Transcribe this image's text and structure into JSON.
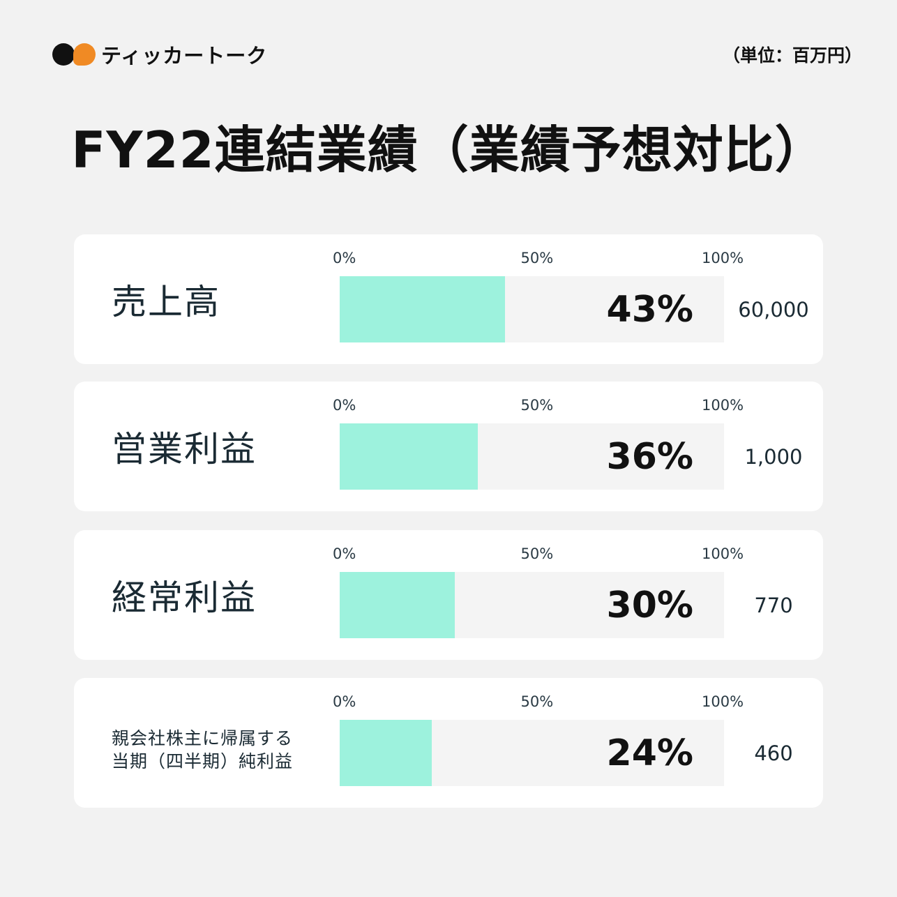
{
  "header": {
    "brand_name": "ティッカートーク",
    "unit": "（単位：百万円）",
    "title": "FY22連結業績（業績予想対比）"
  },
  "colors": {
    "fill": "#9df2dd",
    "track": "#f4f4f4",
    "logo_black": "#111111",
    "logo_orange": "#f08a24"
  },
  "icons": [
    "brand-logo-icon"
  ],
  "chart_data": {
    "type": "bar",
    "orientation": "horizontal",
    "xlim": [
      0,
      100
    ],
    "ticks": [
      "0%",
      "50%",
      "100%"
    ],
    "categories": [
      "売上高",
      "営業利益",
      "経常利益",
      "親会社株主に帰属する当期（四半期）純利益"
    ],
    "label_lines": [
      [
        "売上高"
      ],
      [
        "営業利益"
      ],
      [
        "経常利益"
      ],
      [
        "親会社株主に帰属する",
        "当期（四半期）純利益"
      ]
    ],
    "values": [
      43,
      36,
      30,
      24
    ],
    "value_labels": [
      "43%",
      "36%",
      "30%",
      "24%"
    ],
    "forecasts": [
      "60,000",
      "1,000",
      "770",
      "460"
    ]
  }
}
